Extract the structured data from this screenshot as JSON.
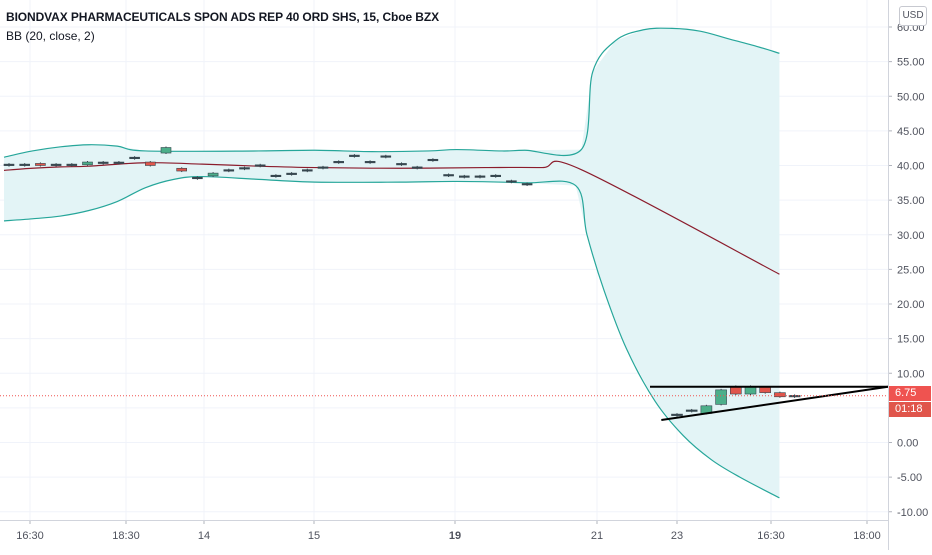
{
  "legend": {
    "title": "BIONDVAX PHARMACEUTICALS SPON ADS REP 40 ORD SHS, 15, Cboe BZX",
    "indicator": "BB (20, close, 2)"
  },
  "currency": "USD",
  "price_badge": {
    "value": "6.75",
    "color": "#ef5350"
  },
  "timer_badge": {
    "value": "01:18",
    "color": "#e0554b"
  },
  "colors": {
    "up": "#4caf8a",
    "down": "#e0554b",
    "band": "#26a69a",
    "basis": "#8b1c2c",
    "band_fill": "#e3f4f6",
    "grid": "#f0f3fa",
    "axis_text": "#50535e",
    "trendline": "#000000"
  },
  "chart_data": {
    "type": "candlestick",
    "y_ticks": [
      "60.00",
      "55.00",
      "50.00",
      "45.00",
      "40.00",
      "35.00",
      "30.00",
      "25.00",
      "20.00",
      "15.00",
      "10.00",
      "5.00",
      "0.00",
      "-5.00",
      "-10.00"
    ],
    "ylim": [
      -10,
      60
    ],
    "x_ticks": [
      {
        "label": "16:30",
        "bold": false
      },
      {
        "label": "18:30",
        "bold": false
      },
      {
        "label": "14",
        "bold": false
      },
      {
        "label": "15",
        "bold": false
      },
      {
        "label": "19",
        "bold": true
      },
      {
        "label": "21",
        "bold": false
      },
      {
        "label": "23",
        "bold": false
      },
      {
        "label": "16:30",
        "bold": false
      },
      {
        "label": "18:00",
        "bold": false
      }
    ],
    "last_price": 6.75,
    "candles": [
      {
        "i": 0,
        "o": 40.2,
        "c": 40.1
      },
      {
        "i": 1,
        "o": 40.1,
        "c": 40.2
      },
      {
        "i": 2,
        "o": 40.3,
        "c": 40.0
      },
      {
        "i": 3,
        "o": 40.1,
        "c": 40.2
      },
      {
        "i": 4,
        "o": 40.0,
        "c": 40.2
      },
      {
        "i": 5,
        "o": 40.1,
        "c": 40.5
      },
      {
        "i": 6,
        "o": 40.5,
        "c": 40.4
      },
      {
        "i": 7,
        "o": 40.5,
        "c": 40.4
      },
      {
        "i": 8,
        "o": 41.0,
        "c": 41.2
      },
      {
        "i": 9,
        "o": 40.5,
        "c": 40.0
      },
      {
        "i": 10,
        "o": 41.8,
        "c": 42.6
      },
      {
        "i": 11,
        "o": 39.6,
        "c": 39.2
      },
      {
        "i": 12,
        "o": 38.3,
        "c": 38.1
      },
      {
        "i": 13,
        "o": 38.5,
        "c": 38.9
      },
      {
        "i": 14,
        "o": 39.4,
        "c": 39.2
      },
      {
        "i": 15,
        "o": 39.7,
        "c": 39.5
      },
      {
        "i": 16,
        "o": 40.1,
        "c": 40.0
      },
      {
        "i": 17,
        "o": 38.6,
        "c": 38.5
      },
      {
        "i": 18,
        "o": 38.9,
        "c": 38.7
      },
      {
        "i": 19,
        "o": 39.4,
        "c": 39.3
      },
      {
        "i": 20,
        "o": 39.7,
        "c": 39.8
      },
      {
        "i": 21,
        "o": 40.5,
        "c": 40.6
      },
      {
        "i": 22,
        "o": 41.3,
        "c": 41.5
      },
      {
        "i": 23,
        "o": 40.4,
        "c": 40.6
      },
      {
        "i": 24,
        "o": 41.3,
        "c": 41.4
      },
      {
        "i": 25,
        "o": 40.1,
        "c": 40.3
      },
      {
        "i": 26,
        "o": 39.6,
        "c": 39.8
      },
      {
        "i": 27,
        "o": 40.8,
        "c": 40.9
      },
      {
        "i": 28,
        "o": 38.7,
        "c": 38.6
      },
      {
        "i": 29,
        "o": 38.5,
        "c": 38.4
      },
      {
        "i": 30,
        "o": 38.5,
        "c": 38.4
      },
      {
        "i": 31,
        "o": 38.6,
        "c": 38.5
      },
      {
        "i": 32,
        "o": 37.8,
        "c": 37.7
      },
      {
        "i": 33,
        "o": 37.4,
        "c": 37.3
      },
      {
        "i": 34,
        "o": 4.1,
        "c": 4.0
      },
      {
        "i": 35,
        "o": 4.6,
        "c": 4.7
      },
      {
        "i": 36,
        "o": 4.2,
        "c": 5.3
      },
      {
        "i": 37,
        "o": 5.5,
        "c": 7.6
      },
      {
        "i": 38,
        "o": 8.1,
        "c": 7.0
      },
      {
        "i": 39,
        "o": 7.0,
        "c": 8.1
      },
      {
        "i": 40,
        "o": 8.0,
        "c": 7.2
      },
      {
        "i": 41,
        "o": 7.2,
        "c": 6.6
      },
      {
        "i": 42,
        "o": 6.8,
        "c": 6.75
      }
    ],
    "bb_upper": [
      [
        0,
        41.2
      ],
      [
        5,
        42.1
      ],
      [
        10,
        42.7
      ],
      [
        15,
        43.0
      ],
      [
        20,
        42.8
      ],
      [
        25,
        42.1
      ],
      [
        45,
        42.1
      ],
      [
        55,
        42.2
      ],
      [
        65,
        42.0
      ],
      [
        75,
        42.1
      ],
      [
        80,
        42.3
      ],
      [
        88,
        42.1
      ],
      [
        92,
        42.2
      ],
      [
        102,
        42.3
      ],
      [
        104,
        53.5
      ],
      [
        108,
        58.0
      ],
      [
        113,
        59.6
      ],
      [
        118,
        59.8
      ],
      [
        123,
        59.4
      ],
      [
        128,
        58.3
      ],
      [
        133,
        57.2
      ],
      [
        137,
        56.2
      ]
    ],
    "bb_lower": [
      [
        0,
        32.0
      ],
      [
        5,
        32.3
      ],
      [
        10,
        32.7
      ],
      [
        15,
        33.5
      ],
      [
        20,
        34.8
      ],
      [
        25,
        36.8
      ],
      [
        30,
        38.0
      ],
      [
        35,
        38.4
      ],
      [
        45,
        38.0
      ],
      [
        55,
        37.6
      ],
      [
        70,
        37.6
      ],
      [
        80,
        37.7
      ],
      [
        92,
        37.5
      ],
      [
        101,
        37.1
      ],
      [
        103,
        30.0
      ],
      [
        106,
        22.0
      ],
      [
        110,
        13.5
      ],
      [
        115,
        6.0
      ],
      [
        120,
        1.0
      ],
      [
        125,
        -2.5
      ],
      [
        130,
        -5.0
      ],
      [
        137,
        -8.0
      ]
    ],
    "bb_basis": [
      [
        0,
        39.3
      ],
      [
        5,
        39.6
      ],
      [
        10,
        39.8
      ],
      [
        15,
        39.9
      ],
      [
        25,
        40.4
      ],
      [
        35,
        40.2
      ],
      [
        45,
        39.9
      ],
      [
        55,
        39.7
      ],
      [
        70,
        39.6
      ],
      [
        85,
        39.7
      ],
      [
        95,
        39.7
      ],
      [
        102,
        39.4
      ],
      [
        137,
        24.3
      ]
    ],
    "trendlines": [
      {
        "from": [
          100,
          8.05
        ],
        "to": [
          143,
          8.05
        ]
      },
      {
        "from": [
          102,
          3.25
        ],
        "to": [
          143,
          8.05
        ]
      }
    ],
    "grid": true
  }
}
